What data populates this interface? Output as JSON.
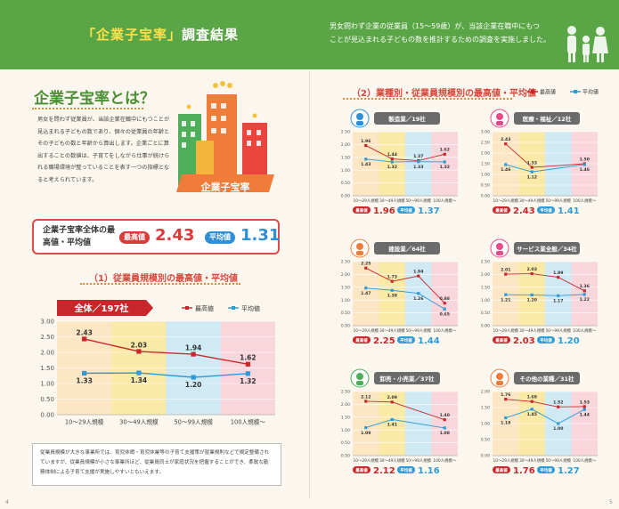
{
  "header": {
    "title_bracket_open": "「",
    "title_keyword": "企業子宝率",
    "title_bracket_close": "」",
    "title_rest": "調査結果",
    "note_line1": "男女問わず企業の従業員（15～59歳）が、当該企業在職中にもつ",
    "note_line2": "ことが見込まれる子どもの数を推計するための調査を実施しました。"
  },
  "about": {
    "title": "企業子宝率とは？",
    "text": "男女を問わず従業員が、当該企業在職中にもつことが見込まれる子どもの数であり、個々の従業員の年齢とその子どもの数と年齢から算出します。企業ごとに算出することの数値は、子育てをしながら仕事が続けられる職場環境が整っていることを表す一つの指標となると考えられています。",
    "illustration_label": "企業子宝率"
  },
  "summary": {
    "label": "企業子宝率全体の最高値・平均値",
    "max_label": "最高値",
    "max_value": "2.43",
    "avg_label": "平均値",
    "avg_value": "1.31"
  },
  "section1": {
    "title": "（1）従業員規模別の最高値・平均値"
  },
  "section2": {
    "title": "（2）業種別・従業員規模別の最高値・平均値"
  },
  "legend": {
    "max": "最高値",
    "avg": "平均値"
  },
  "colors": {
    "max": "#c9262c",
    "avg": "#2e9bd6",
    "header": "#5aa545",
    "bg1": "#fde6c4",
    "bg2": "#fbe9a8",
    "bg3": "#cfe9f5",
    "bg4": "#f9d6dc"
  },
  "main_note": "従業員規模が大きな事業所では、育児休暇・育児休業等の子育て支援策が就業規則などで規定整備されていますが、従業員規模が小さな事業所ほど、従業員同士が家庭状況を把握することができ、柔軟な勤務体制による子育て支援が実施しやすいともいえます。",
  "page_numbers": {
    "left": "4",
    "right": "5"
  },
  "chart_data": [
    {
      "type": "line",
      "title": "全体／197社",
      "categories": [
        "10～29人規模",
        "30～49人規模",
        "50～99人規模",
        "100人規模～"
      ],
      "series": [
        {
          "name": "最高値",
          "values": [
            2.43,
            2.03,
            1.94,
            1.62
          ]
        },
        {
          "name": "平均値",
          "values": [
            1.33,
            1.34,
            1.2,
            1.32
          ]
        }
      ],
      "ylim": [
        0,
        3.0
      ],
      "yticks": [
        "0.00",
        "0.50",
        "1.00",
        "1.50",
        "2.00",
        "2.50",
        "3.00"
      ]
    },
    {
      "type": "line",
      "title": "製造業／19社",
      "categories": [
        "10～29人規模",
        "30～49人規模",
        "50～99人規模",
        "100人規模～"
      ],
      "series": [
        {
          "name": "最高値",
          "values": [
            1.96,
            1.44,
            1.37,
            1.62
          ]
        },
        {
          "name": "平均値",
          "values": [
            1.43,
            1.32,
            1.33,
            1.32
          ]
        }
      ],
      "ylim": [
        0,
        2.5
      ],
      "yticks": [
        "0.00",
        "0.50",
        "1.00",
        "1.50",
        "2.00",
        "2.50"
      ],
      "max_label": "最高値",
      "max": "1.96",
      "avg_label": "平均値",
      "avg": "1.37"
    },
    {
      "type": "line",
      "title": "医療・福祉／12社",
      "categories": [
        "10～29人規模",
        "30～49人規模",
        "50～99人規模",
        "100人規模～"
      ],
      "series": [
        {
          "name": "最高値",
          "values": [
            2.43,
            1.33,
            null,
            1.5
          ]
        },
        {
          "name": "平均値",
          "values": [
            1.46,
            1.12,
            null,
            1.46
          ]
        }
      ],
      "ylim": [
        0,
        3.0
      ],
      "yticks": [
        "0.00",
        "0.50",
        "1.00",
        "1.50",
        "2.00",
        "2.50",
        "3.00"
      ],
      "max_label": "最高値",
      "max": "2.43",
      "avg_label": "平均値",
      "avg": "1.41"
    },
    {
      "type": "line",
      "title": "建設業／64社",
      "categories": [
        "10～29人規模",
        "30～49人規模",
        "50～99人規模",
        "100人規模～"
      ],
      "series": [
        {
          "name": "最高値",
          "values": [
            2.25,
            1.73,
            1.94,
            0.88
          ]
        },
        {
          "name": "平均値",
          "values": [
            1.47,
            1.38,
            1.26,
            0.65
          ]
        }
      ],
      "ylim": [
        0,
        2.5
      ],
      "yticks": [
        "0.00",
        "0.50",
        "1.00",
        "1.50",
        "2.00",
        "2.50"
      ],
      "max_label": "最高値",
      "max": "2.25",
      "avg_label": "平均値",
      "avg": "1.44"
    },
    {
      "type": "line",
      "title": "サービス業全般／34社",
      "categories": [
        "10～29人規模",
        "30～49人規模",
        "50～99人規模",
        "100人規模～"
      ],
      "series": [
        {
          "name": "最高値",
          "values": [
            2.01,
            2.03,
            1.89,
            1.36
          ]
        },
        {
          "name": "平均値",
          "values": [
            1.21,
            1.2,
            1.17,
            1.22
          ]
        }
      ],
      "ylim": [
        0,
        2.5
      ],
      "yticks": [
        "0.00",
        "0.50",
        "1.00",
        "1.50",
        "2.00",
        "2.50"
      ],
      "max_label": "最高値",
      "max": "2.03",
      "avg_label": "平均値",
      "avg": "1.20"
    },
    {
      "type": "line",
      "title": "卸売・小売業／37社",
      "categories": [
        "10～29人規模",
        "30～49人規模",
        "50～99人規模",
        "100人規模～"
      ],
      "series": [
        {
          "name": "最高値",
          "values": [
            2.12,
            2.09,
            null,
            1.4
          ]
        },
        {
          "name": "平均値",
          "values": [
            1.09,
            1.41,
            null,
            1.08
          ]
        }
      ],
      "ylim": [
        0,
        2.5
      ],
      "yticks": [
        "0.00",
        "0.50",
        "1.00",
        "1.50",
        "2.00",
        "2.50"
      ],
      "max_label": "最高値",
      "max": "2.12",
      "avg_label": "平均値",
      "avg": "1.16"
    },
    {
      "type": "line",
      "title": "その他の業種／31社",
      "categories": [
        "10～29人規模",
        "30～49人規模",
        "50～99人規模",
        "100人規模～"
      ],
      "series": [
        {
          "name": "最高値",
          "values": [
            1.76,
            1.69,
            1.52,
            1.53
          ]
        },
        {
          "name": "平均値",
          "values": [
            1.18,
            1.45,
            1.0,
            1.44
          ]
        }
      ],
      "ylim": [
        0,
        2.0
      ],
      "yticks": [
        "0.00",
        "0.50",
        "1.00",
        "1.50",
        "2.00"
      ],
      "max_label": "最高値",
      "max": "1.76",
      "avg_label": "平均値",
      "avg": "1.27"
    }
  ]
}
